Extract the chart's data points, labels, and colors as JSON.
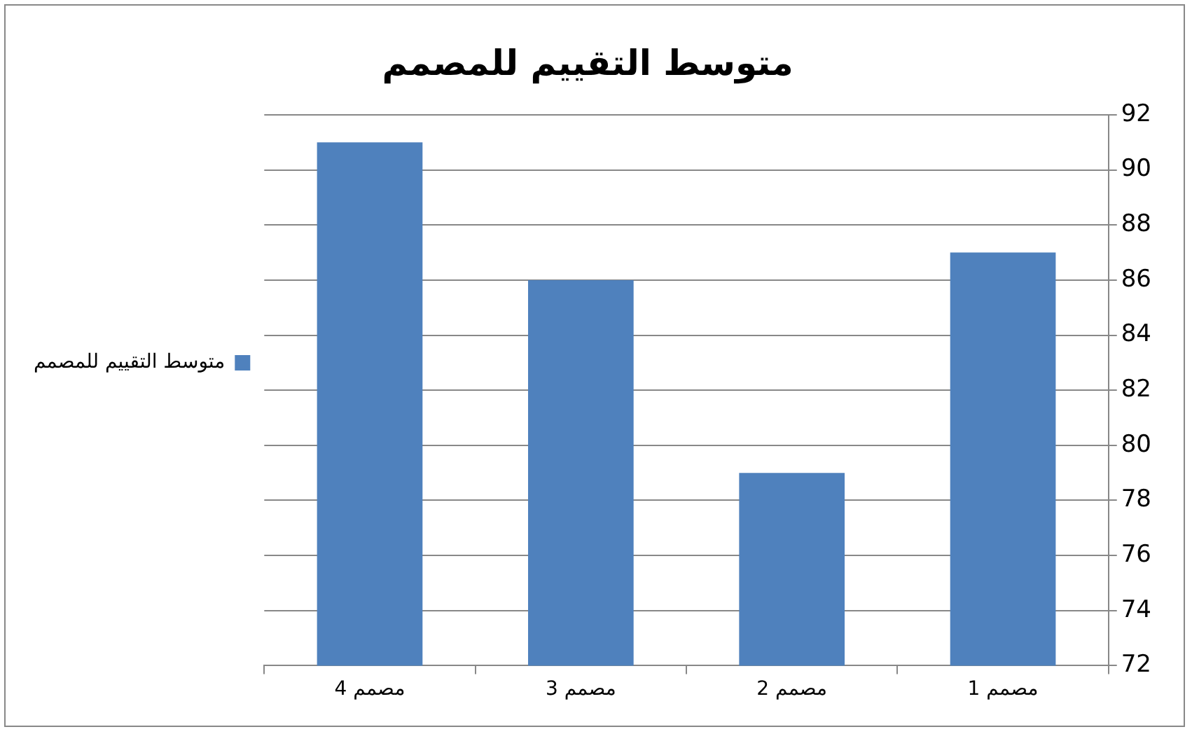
{
  "chart_data": {
    "type": "bar",
    "title": "متوسط التقييم للمصمم",
    "categories": [
      "مصمم 4",
      "مصمم 3",
      "مصمم 2",
      "مصمم 1"
    ],
    "series": [
      {
        "name": "متوسط التقييم للمصمم",
        "color": "#4f81bd",
        "values": [
          91,
          86,
          79,
          87
        ]
      }
    ],
    "ylim": [
      72,
      92
    ],
    "yticks": [
      72,
      74,
      76,
      78,
      80,
      82,
      84,
      86,
      88,
      90,
      92
    ],
    "grid": "y",
    "legend": "left"
  }
}
